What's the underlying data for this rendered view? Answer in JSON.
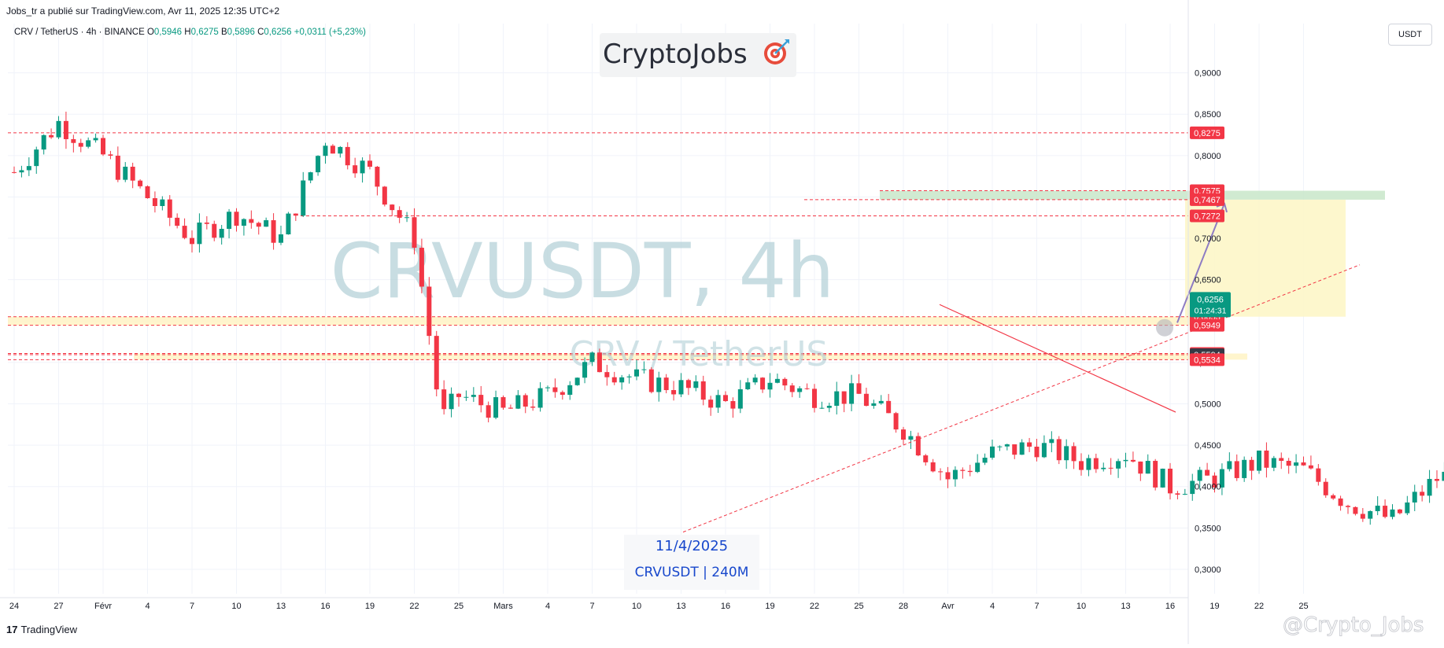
{
  "header": {
    "published_line": "Jobs_tr a publié sur TradingView.com, Avr 11, 2025 12:35 UTC+2",
    "legend": {
      "symbol_line": "CRV / TetherUS · 4h · BINANCE",
      "o_label": "O",
      "o_value": "0,5946",
      "h_label": "H",
      "h_value": "0,6275",
      "b_label": "B",
      "b_value": "0,5896",
      "c_label": "C",
      "c_value": "0,6256",
      "change": "+0,0311 (+5,23%)"
    },
    "brand": "CryptoJobs",
    "currency_button": "USDT"
  },
  "watermark": {
    "main": "CRVUSDT, 4h",
    "sub": "CRV / TetherUS"
  },
  "annotation": {
    "date": "11/4/2025",
    "symbol": "CRVUSDT | 240M"
  },
  "footer": {
    "tv_label": "TradingView",
    "handle": "@Crypto_Jobs"
  },
  "colors": {
    "up": "#089981",
    "down": "#f23645",
    "grid": "#f0f3fa",
    "axis_text": "#131722",
    "level_line": "#f23645",
    "zone_fill": "#fff3c4",
    "target_fill": "#c8e6c9",
    "projection_fill": "#fdf6c8",
    "arrow": "#8e7cc3",
    "current_price_bg": "#089981",
    "watermark": "#b2d0d6"
  },
  "chart_data": {
    "type": "candlestick",
    "timeframe": "4h",
    "ylim": [
      0.28,
      0.95
    ],
    "y_ticks": [
      "0,9000",
      "0,8500",
      "0,8000",
      "0,7500",
      "0,7000",
      "0,6500",
      "0,6000",
      "0,5500",
      "0,5000",
      "0,4500",
      "0,4000",
      "0,3500",
      "0,3000"
    ],
    "y_tick_values": [
      0.9,
      0.85,
      0.8,
      0.75,
      0.7,
      0.65,
      0.6,
      0.55,
      0.5,
      0.45,
      0.4,
      0.35,
      0.3
    ],
    "x_labels": [
      "24",
      "27",
      "Févr",
      "4",
      "7",
      "10",
      "13",
      "16",
      "19",
      "22",
      "25",
      "Mars",
      "4",
      "7",
      "10",
      "13",
      "16",
      "19",
      "22",
      "25",
      "28",
      "Avr",
      "4",
      "7",
      "10",
      "13",
      "16",
      "19",
      "22",
      "25"
    ],
    "price_series_anchors": [
      [
        0,
        0.78
      ],
      [
        1,
        0.84
      ],
      [
        2,
        0.8
      ],
      [
        4,
        0.7
      ],
      [
        5,
        0.73
      ],
      [
        6,
        0.7
      ],
      [
        7,
        0.82
      ],
      [
        8,
        0.78
      ],
      [
        9,
        0.7
      ],
      [
        9.4,
        0.56
      ],
      [
        9.6,
        0.48
      ],
      [
        10,
        0.51
      ],
      [
        11,
        0.49
      ],
      [
        12,
        0.51
      ],
      [
        13,
        0.55
      ],
      [
        14,
        0.53
      ],
      [
        15,
        0.52
      ],
      [
        16,
        0.5
      ],
      [
        17,
        0.53
      ],
      [
        18,
        0.51
      ],
      [
        19,
        0.51
      ],
      [
        20,
        0.47
      ],
      [
        21,
        0.41
      ],
      [
        22,
        0.44
      ],
      [
        23,
        0.45
      ],
      [
        24,
        0.43
      ],
      [
        25,
        0.44
      ],
      [
        26,
        0.4
      ],
      [
        27,
        0.41
      ],
      [
        28,
        0.43
      ],
      [
        29,
        0.42
      ],
      [
        30,
        0.38
      ],
      [
        31,
        0.36
      ],
      [
        32,
        0.41
      ],
      [
        33,
        0.42
      ],
      [
        34,
        0.4
      ],
      [
        35,
        0.43
      ],
      [
        36,
        0.44
      ],
      [
        37,
        0.48
      ],
      [
        38,
        0.45
      ],
      [
        39,
        0.44
      ],
      [
        40,
        0.49
      ],
      [
        41,
        0.52
      ],
      [
        42,
        0.5
      ],
      [
        43,
        0.58
      ],
      [
        44,
        0.55
      ],
      [
        45,
        0.5
      ],
      [
        46,
        0.47
      ],
      [
        47,
        0.45
      ],
      [
        48,
        0.53
      ],
      [
        49,
        0.54
      ],
      [
        50,
        0.5
      ],
      [
        51,
        0.47
      ],
      [
        52,
        0.41
      ],
      [
        53,
        0.45
      ],
      [
        54,
        0.46
      ],
      [
        55,
        0.5
      ],
      [
        56,
        0.51
      ],
      [
        57,
        0.59
      ],
      [
        57.4,
        0.6256
      ]
    ],
    "levels": [
      {
        "label": "0,8275",
        "value": 0.8275
      },
      {
        "label": "0,7575",
        "value": 0.7575
      },
      {
        "label": "0,7467",
        "value": 0.7467
      },
      {
        "label": "0,7272",
        "value": 0.7272
      },
      {
        "label": "0,6053",
        "value": 0.6053
      },
      {
        "label": "0,5949",
        "value": 0.5949
      },
      {
        "label": "0,5608",
        "value": 0.5608
      },
      {
        "label": "0,5594",
        "value": 0.5594
      },
      {
        "label": "0,5534",
        "value": 0.5534
      }
    ],
    "current_price": {
      "label": "0,6256",
      "value": 0.6256,
      "countdown": "01:24:31"
    },
    "zones": [
      {
        "name": "upper-support-zone",
        "from": 0.5949,
        "to": 0.6053
      },
      {
        "name": "lower-support-zone",
        "from": 0.5534,
        "to": 0.5608
      },
      {
        "name": "target-zone",
        "from": 0.7467,
        "to": 0.7575
      }
    ],
    "grid": true
  }
}
